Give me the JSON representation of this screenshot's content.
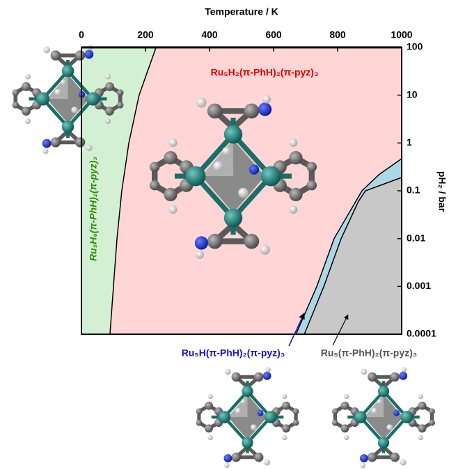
{
  "chart_data": {
    "type": "phase_diagram",
    "x_label": "Temperature / K",
    "y_label": "pH₂ / bar",
    "xlim": [
      0,
      1000
    ],
    "ylim": [
      0.0001,
      100
    ],
    "log_y": true,
    "xticks": [
      0,
      200,
      400,
      600,
      800,
      1000
    ],
    "yticks": [
      100,
      10,
      1,
      0.1,
      0.01,
      0.001,
      0.0001
    ],
    "regions": [
      {
        "name": "Ru₅H₆(π-PhH)₂(π-pyz)₃",
        "color": "#d4f0d4",
        "label_color": "#2e8b00"
      },
      {
        "name": "Ru₅H₂(π-PhH)₂(π-pyz)₃",
        "color": "#ffd5d6",
        "label_color": "#e00000"
      },
      {
        "name": "Ru₅H(π-PhH)₂(π-pyz)₃",
        "color": "#acd8e6",
        "label_color": "#1414c0"
      },
      {
        "name": "Ru₅(π-PhH)₂(π-pyz)₃",
        "color": "#c8c8c8",
        "label_color": "#555555"
      }
    ],
    "boundaries": [
      {
        "x": [
          89,
          100,
          111,
          126,
          148,
          180,
          233
        ],
        "values": [
          0.0001,
          0.001,
          0.01,
          0.1,
          1,
          10,
          100
        ]
      },
      {
        "x": [
          670,
          735,
          789,
          876,
          930,
          1000
        ],
        "values": [
          0.0001,
          0.001,
          0.01,
          0.1,
          0.22,
          0.47
        ]
      },
      {
        "x": [
          696,
          757,
          811,
          865,
          887,
          1000
        ],
        "values": [
          0.0001,
          0.001,
          0.01,
          0.06,
          0.1,
          0.19
        ]
      }
    ]
  }
}
